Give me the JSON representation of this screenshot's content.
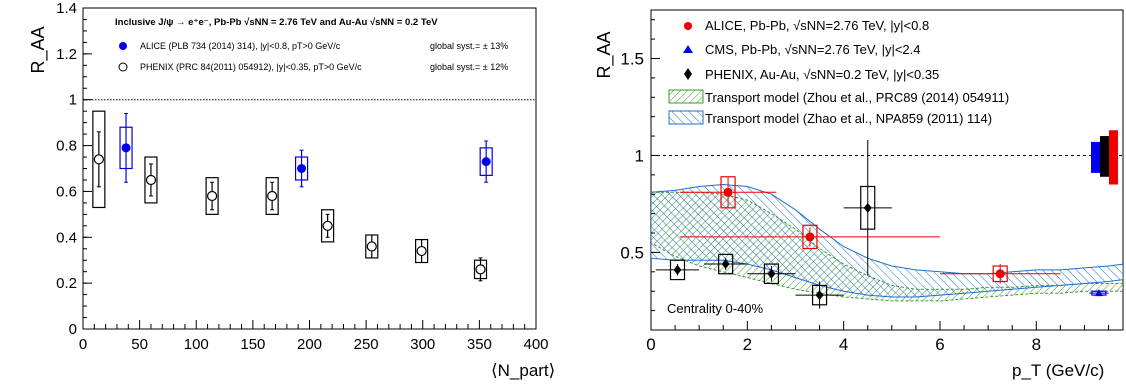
{
  "chart_data": [
    {
      "type": "scatter",
      "title": "Inclusive J/ψ → e⁺e⁻, Pb-Pb √sNN = 2.76 TeV and Au-Au √sNN = 0.2 TeV",
      "xlabel": "⟨N_part⟩",
      "ylabel": "R_AA",
      "xlim": [
        0,
        400
      ],
      "ylim": [
        0,
        1.4
      ],
      "xticks": [
        0,
        50,
        100,
        150,
        200,
        250,
        300,
        350,
        400
      ],
      "yticks": [
        0,
        0.2,
        0.4,
        0.6,
        0.8,
        1,
        1.2,
        1.4
      ],
      "reference_line": 1,
      "legend_position": "top-left",
      "series": [
        {
          "name": "ALICE (PLB 734 (2014) 314), |y|<0.8, pT>0 GeV/c",
          "syst_note": "global syst.= ± 13%",
          "color": "#0000ee",
          "marker": "filled-circle",
          "points": [
            {
              "x": 38,
              "y": 0.79,
              "stat": 0.15,
              "syst": 0.09
            },
            {
              "x": 193,
              "y": 0.7,
              "stat": 0.08,
              "syst": 0.05
            },
            {
              "x": 356,
              "y": 0.73,
              "stat": 0.09,
              "syst": 0.06
            }
          ]
        },
        {
          "name": "PHENIX (PRC 84(2011) 054912), |y|<0.35, pT>0 GeV/c",
          "syst_note": "global syst.= ± 12%",
          "color": "#000000",
          "marker": "open-circle",
          "points": [
            {
              "x": 14,
              "y": 0.74,
              "stat": 0.12,
              "syst": 0.21
            },
            {
              "x": 60,
              "y": 0.65,
              "stat": 0.07,
              "syst": 0.1
            },
            {
              "x": 114,
              "y": 0.58,
              "stat": 0.06,
              "syst": 0.08
            },
            {
              "x": 167,
              "y": 0.58,
              "stat": 0.06,
              "syst": 0.08
            },
            {
              "x": 216,
              "y": 0.45,
              "stat": 0.05,
              "syst": 0.07
            },
            {
              "x": 255,
              "y": 0.36,
              "stat": 0.05,
              "syst": 0.05
            },
            {
              "x": 299,
              "y": 0.34,
              "stat": 0.05,
              "syst": 0.05
            },
            {
              "x": 351,
              "y": 0.26,
              "stat": 0.05,
              "syst": 0.04
            }
          ]
        }
      ]
    },
    {
      "type": "scatter",
      "title": "",
      "xlabel": "p_T (GeV/c)",
      "ylabel": "R_AA",
      "xlim": [
        0,
        9.8
      ],
      "ylim": [
        0.1,
        1.75
      ],
      "xticks": [
        0,
        2,
        4,
        6,
        8
      ],
      "yticks": [
        0.5,
        1,
        1.5
      ],
      "reference_line": 1,
      "annotation": "Centrality 0-40%",
      "legend_position": "top-left",
      "series": [
        {
          "name": "ALICE, Pb-Pb, √sNN=2.76 TeV, |y|<0.8",
          "color": "#ee0000",
          "marker": "filled-circle",
          "points": [
            {
              "x": 1.6,
              "y": 0.81,
              "xerr": 1.0,
              "stat": 0.08,
              "syst": 0.08
            },
            {
              "x": 3.3,
              "y": 0.58,
              "xerr": 2.7,
              "stat": 0.05,
              "syst": 0.06
            },
            {
              "x": 7.25,
              "y": 0.39,
              "xerr": 1.25,
              "stat": 0.05,
              "syst": 0.04
            }
          ]
        },
        {
          "name": "CMS, Pb-Pb, √sNN=2.76 TeV, |y|<2.4",
          "color": "#0000ee",
          "marker": "filled-triangle",
          "points": [
            {
              "x": 9.3,
              "y": 0.29,
              "xerr": 0.2,
              "stat": 0.01,
              "syst": 0.01
            }
          ]
        },
        {
          "name": "PHENIX, Au-Au, √sNN=0.2 TeV, |y|<0.35",
          "color": "#000000",
          "marker": "filled-diamond",
          "points": [
            {
              "x": 0.55,
              "y": 0.41,
              "xerr": 0.45,
              "stat": 0.03,
              "syst": 0.05
            },
            {
              "x": 1.55,
              "y": 0.44,
              "xerr": 0.45,
              "stat": 0.03,
              "syst": 0.05
            },
            {
              "x": 2.5,
              "y": 0.39,
              "xerr": 0.5,
              "stat": 0.04,
              "syst": 0.05
            },
            {
              "x": 3.5,
              "y": 0.28,
              "xerr": 0.5,
              "stat": 0.07,
              "syst": 0.05
            },
            {
              "x": 4.5,
              "y": 0.73,
              "xerr": 0.5,
              "stat": 0.35,
              "syst": 0.11
            }
          ]
        }
      ],
      "bands": [
        {
          "name": "Transport model (Zhou et al., PRC89 (2014) 054911)",
          "color": "#3a9a2a",
          "x": [
            0,
            0.5,
            1,
            1.5,
            2,
            2.5,
            3,
            3.5,
            4,
            4.5,
            5,
            5.5,
            6,
            6.5,
            7,
            7.5,
            8,
            8.5,
            9,
            9.5,
            9.8
          ],
          "upper": [
            0.81,
            0.81,
            0.81,
            0.8,
            0.77,
            0.7,
            0.62,
            0.52,
            0.44,
            0.38,
            0.33,
            0.31,
            0.31,
            0.31,
            0.32,
            0.32,
            0.33,
            0.33,
            0.34,
            0.34,
            0.34
          ],
          "lower": [
            0.55,
            0.48,
            0.43,
            0.4,
            0.37,
            0.34,
            0.31,
            0.29,
            0.27,
            0.26,
            0.25,
            0.25,
            0.25,
            0.26,
            0.27,
            0.28,
            0.29,
            0.29,
            0.3,
            0.3,
            0.3
          ]
        },
        {
          "name": "Transport model (Zhao et al., NPA859 (2011) 114)",
          "color": "#1c6fd0",
          "x": [
            0,
            0.5,
            1,
            1.5,
            2,
            2.5,
            3,
            3.5,
            4,
            4.5,
            5,
            5.5,
            6,
            6.5,
            7,
            7.5,
            8,
            8.5,
            9,
            9.5,
            9.8
          ],
          "upper": [
            0.81,
            0.82,
            0.84,
            0.85,
            0.84,
            0.8,
            0.72,
            0.62,
            0.53,
            0.47,
            0.43,
            0.41,
            0.4,
            0.39,
            0.39,
            0.4,
            0.41,
            0.41,
            0.42,
            0.43,
            0.44
          ],
          "lower": [
            0.47,
            0.46,
            0.46,
            0.46,
            0.44,
            0.41,
            0.37,
            0.33,
            0.3,
            0.28,
            0.27,
            0.27,
            0.28,
            0.29,
            0.3,
            0.31,
            0.32,
            0.33,
            0.34,
            0.35,
            0.36
          ]
        }
      ],
      "global_uncertainty_boxes": [
        {
          "series": "CMS",
          "color": "#0000ee",
          "center": 1.0,
          "low": 0.91,
          "high": 1.07
        },
        {
          "series": "PHENIX",
          "color": "#000000",
          "center": 1.0,
          "low": 0.89,
          "high": 1.1
        },
        {
          "series": "ALICE",
          "color": "#ee0000",
          "center": 1.0,
          "low": 0.85,
          "high": 1.13
        }
      ]
    }
  ]
}
